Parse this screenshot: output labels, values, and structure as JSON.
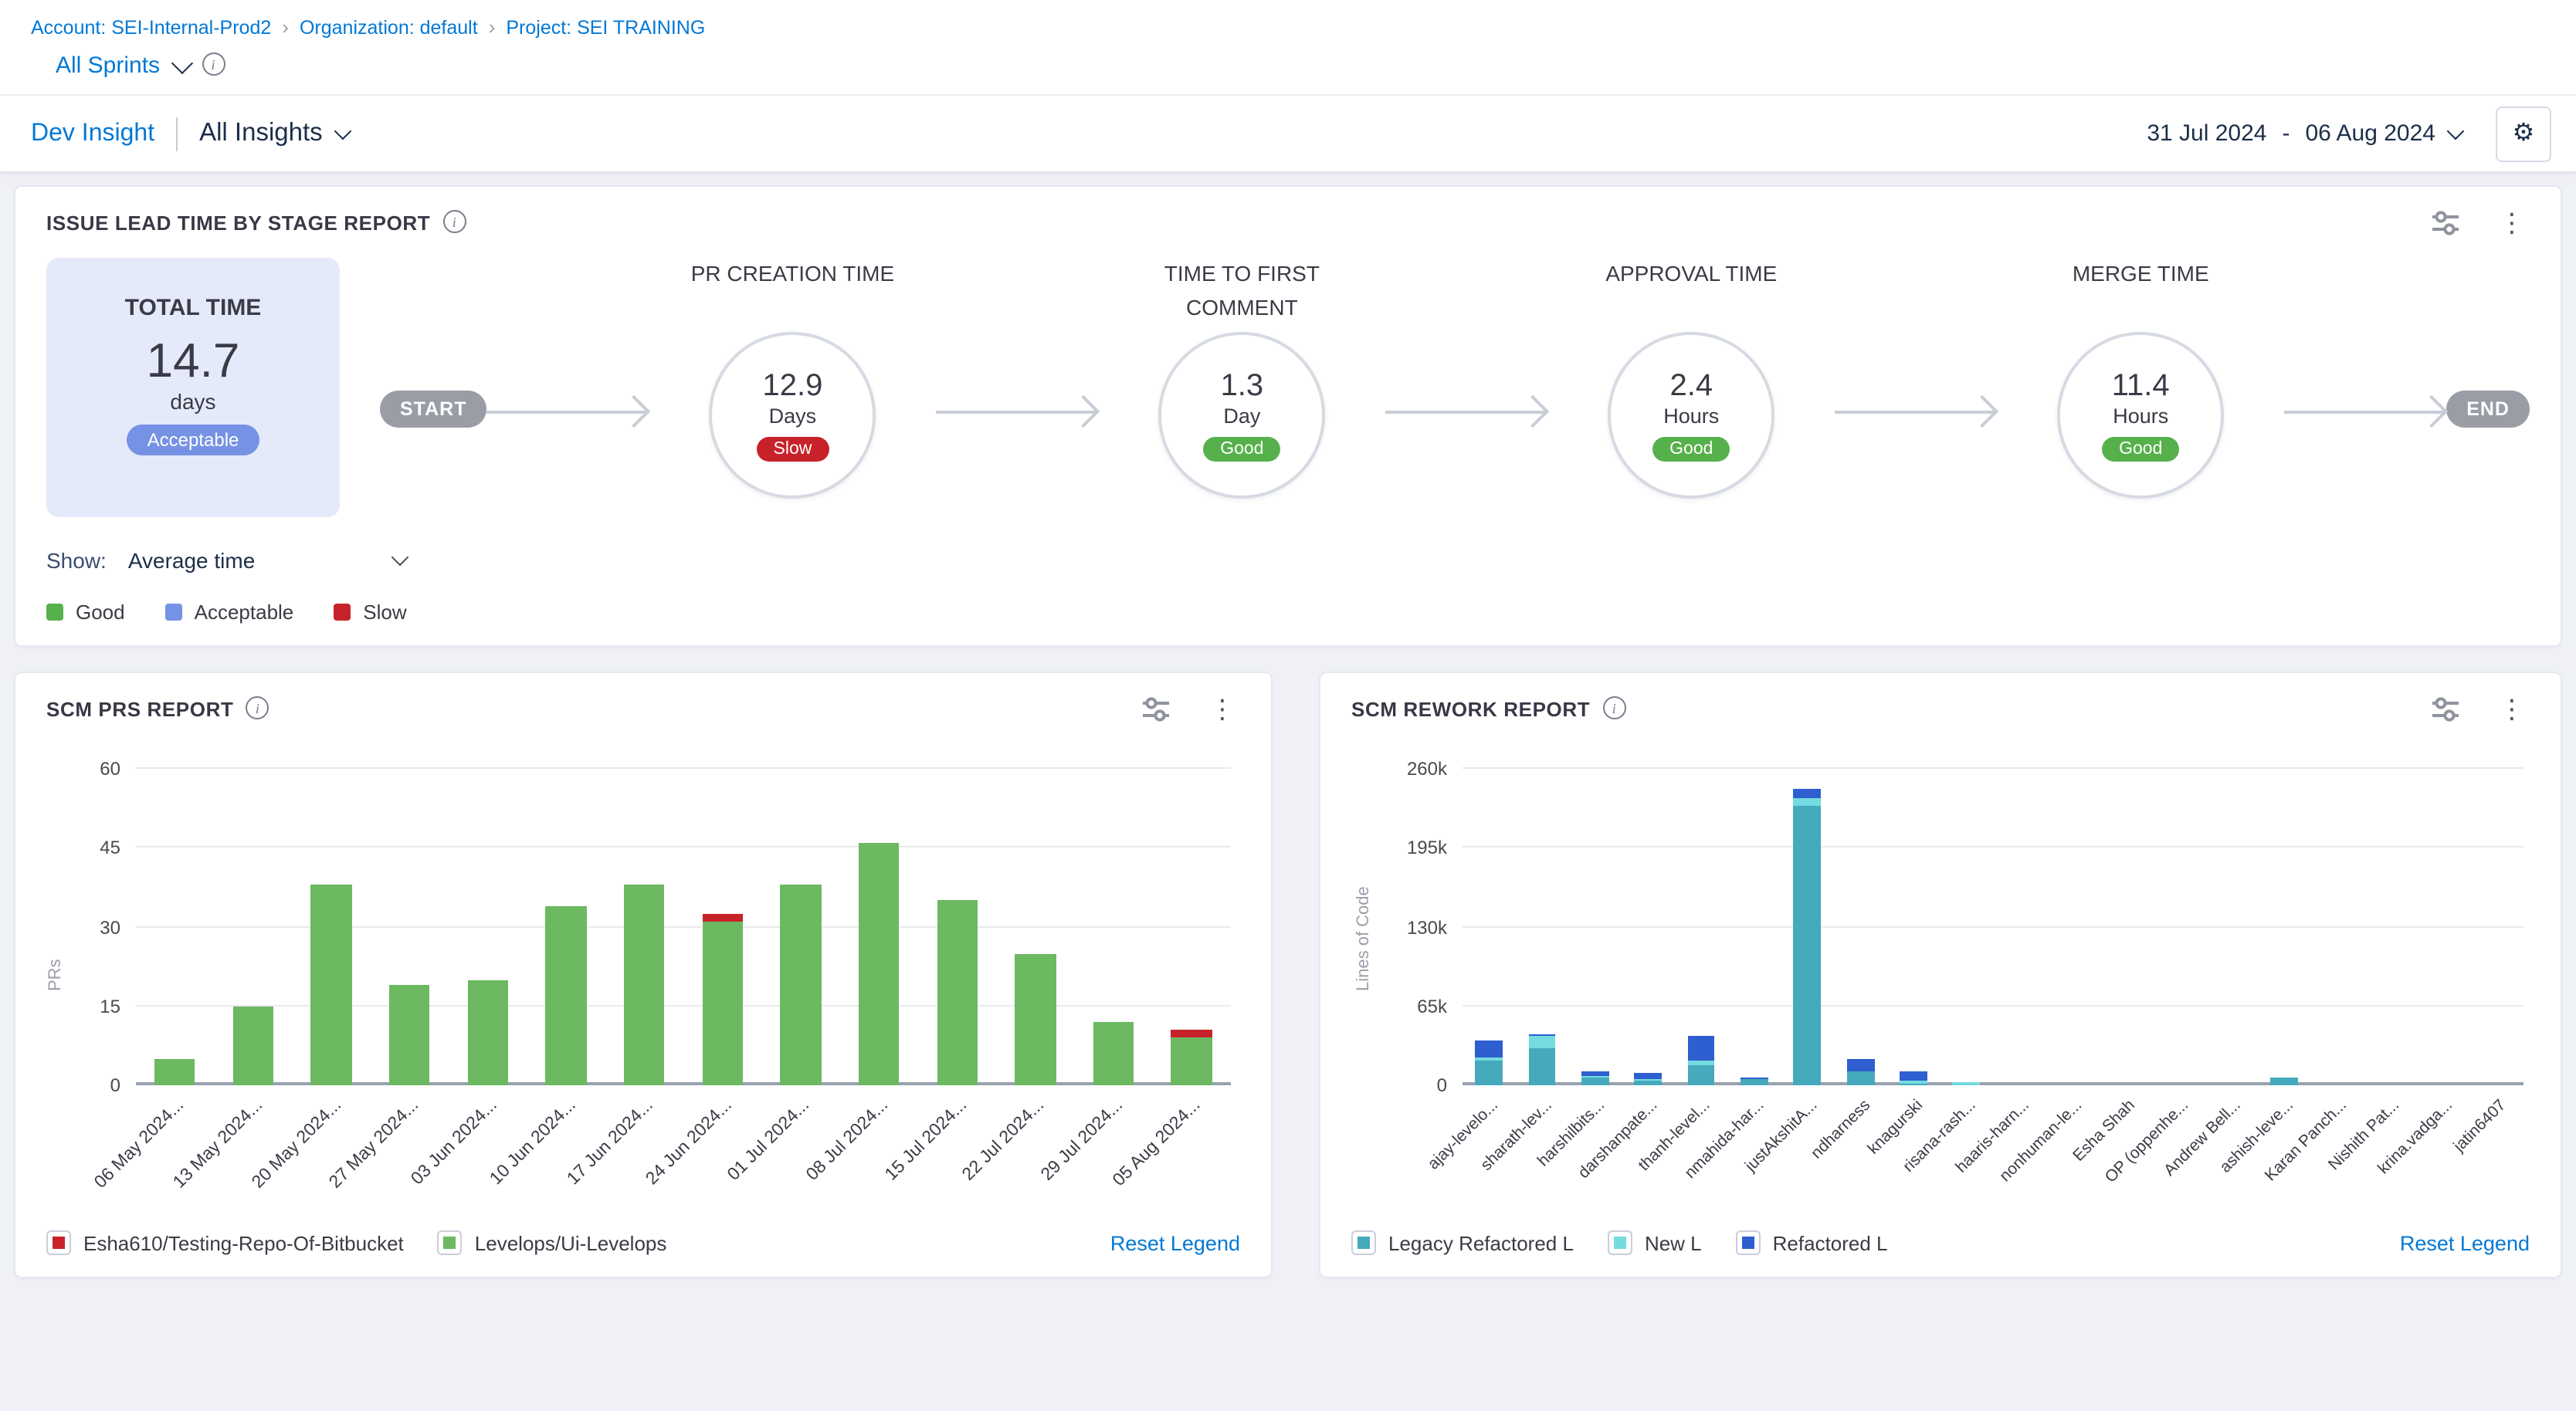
{
  "icons": {
    "settings": "⚙",
    "more": "⋮",
    "info": "i"
  },
  "breadcrumb": {
    "separator": "›",
    "items": [
      "Account: SEI-Internal-Prod2",
      "Organization: default",
      "Project: SEI TRAINING"
    ]
  },
  "sprint_selector": {
    "label": "All Sprints"
  },
  "insight_header": {
    "primary": "Dev Insight",
    "secondary": "All Insights"
  },
  "date_range": {
    "start": "31 Jul 2024",
    "separator": "-",
    "end": "06 Aug 2024"
  },
  "lead_time_panel": {
    "title": "ISSUE LEAD TIME BY STAGE REPORT",
    "total_card": {
      "title": "TOTAL TIME",
      "value": "14.7",
      "unit": "days",
      "rating": "Acceptable",
      "rating_color": "#7692E4"
    },
    "start_label": "START",
    "end_label": "END",
    "stages": [
      {
        "title": "PR CREATION TIME",
        "value": "12.9",
        "unit": "Days",
        "rating": "Slow",
        "rating_color": "#C7222A"
      },
      {
        "title": "TIME TO FIRST COMMENT",
        "value": "1.3",
        "unit": "Day",
        "rating": "Good",
        "rating_color": "#56B04B"
      },
      {
        "title": "APPROVAL TIME",
        "value": "2.4",
        "unit": "Hours",
        "rating": "Good",
        "rating_color": "#56B04B"
      },
      {
        "title": "MERGE TIME",
        "value": "11.4",
        "unit": "Hours",
        "rating": "Good",
        "rating_color": "#56B04B"
      }
    ],
    "show": {
      "label": "Show:",
      "value": "Average time"
    },
    "legend": [
      {
        "label": "Good",
        "color": "#56B04B"
      },
      {
        "label": "Acceptable",
        "color": "#7692E4"
      },
      {
        "label": "Slow",
        "color": "#C7222A"
      }
    ]
  },
  "scm_prs_panel": {
    "title": "SCM PRS REPORT",
    "legend": [
      {
        "label": "Esha610/Testing-Repo-Of-Bitbucket",
        "color": "#C7222A"
      },
      {
        "label": "Levelops/Ui-Levelops",
        "color": "#6CB961"
      }
    ],
    "reset_label": "Reset Legend"
  },
  "scm_rework_panel": {
    "title": "SCM REWORK REPORT",
    "legend": [
      {
        "label": "Legacy Refactored L",
        "color": "#45AABB"
      },
      {
        "label": "New L",
        "color": "#74DBE0"
      },
      {
        "label": "Refactored L",
        "color": "#2E5ECF"
      }
    ],
    "reset_label": "Reset Legend"
  },
  "chart_data": [
    {
      "type": "bar",
      "stacked": true,
      "title": "SCM PRS REPORT",
      "xlabel": "",
      "ylabel": "PRs",
      "ylim": [
        0,
        60
      ],
      "grid": true,
      "legend_position": "bottom",
      "yticks": [
        {
          "label": "0",
          "value": 0
        },
        {
          "label": "15",
          "value": 15
        },
        {
          "label": "30",
          "value": 30
        },
        {
          "label": "45",
          "value": 45
        },
        {
          "label": "60",
          "value": 60
        }
      ],
      "categories": [
        "06 May 2024...",
        "13 May 2024...",
        "20 May 2024...",
        "27 May 2024...",
        "03 Jun 2024...",
        "10 Jun 2024...",
        "17 Jun 2024...",
        "24 Jun 2024...",
        "01 Jul 2024...",
        "08 Jul 2024...",
        "15 Jul 2024...",
        "22 Jul 2024...",
        "29 Jul 2024...",
        "05 Aug 2024..."
      ],
      "series": [
        {
          "name": "Levelops/Ui-Levelops",
          "color": "#6CB961",
          "values": [
            5,
            15,
            38,
            19,
            20,
            34,
            38,
            31,
            38,
            46,
            35,
            25,
            12,
            9
          ]
        },
        {
          "name": "Esha610/Testing-Repo-Of-Bitbucket",
          "color": "#C7222A",
          "values": [
            0,
            0,
            0,
            0,
            0,
            0,
            0,
            1.5,
            0,
            0,
            0,
            0,
            0,
            1.5
          ]
        }
      ],
      "xlabel_font_px": 11.5
    },
    {
      "type": "bar",
      "stacked": true,
      "title": "SCM REWORK REPORT",
      "xlabel": "",
      "ylabel": "Lines of Code",
      "ylim": [
        0,
        260000
      ],
      "grid": true,
      "legend_position": "bottom",
      "yticks": [
        {
          "label": "0",
          "value": 0
        },
        {
          "label": "65k",
          "value": 65000
        },
        {
          "label": "130k",
          "value": 130000
        },
        {
          "label": "195k",
          "value": 195000
        },
        {
          "label": "260k",
          "value": 260000
        }
      ],
      "categories": [
        "ajay-levelo...",
        "sharath-lev...",
        "harshilbits...",
        "darshanpate...",
        "thanh-level...",
        "nmahida-har...",
        "justAkshitA...",
        "ndharness",
        "knagurski",
        "risana-rash...",
        "haaris-harn...",
        "nonhuman-le...",
        "Esha Shah",
        "OP (oppenhe...",
        "Andrew Bell...",
        "ashish-leve...",
        "Karan Panch...",
        "Nishith Pat...",
        "krina.vadga...",
        "jatin6407"
      ],
      "series": [
        {
          "name": "Legacy Refactored L",
          "color": "#45AABB",
          "values": [
            20000,
            30000,
            6000,
            4000,
            16000,
            5000,
            230000,
            11000,
            1000,
            0,
            0,
            0,
            0,
            0,
            0,
            6000,
            0,
            0,
            0,
            0
          ]
        },
        {
          "name": "New L",
          "color": "#74DBE0",
          "values": [
            3000,
            10000,
            1500,
            1000,
            4000,
            500,
            6000,
            1000,
            2500,
            3000,
            0,
            0,
            0,
            0,
            0,
            0,
            0,
            0,
            0,
            0
          ]
        },
        {
          "name": "Refactored L",
          "color": "#2E5ECF",
          "values": [
            14000,
            2000,
            4000,
            5000,
            20000,
            1500,
            8000,
            10000,
            8500,
            0,
            0,
            0,
            0,
            0,
            0,
            0,
            0,
            0,
            0,
            0
          ]
        }
      ],
      "xlabel_font_px": 10.5
    }
  ]
}
